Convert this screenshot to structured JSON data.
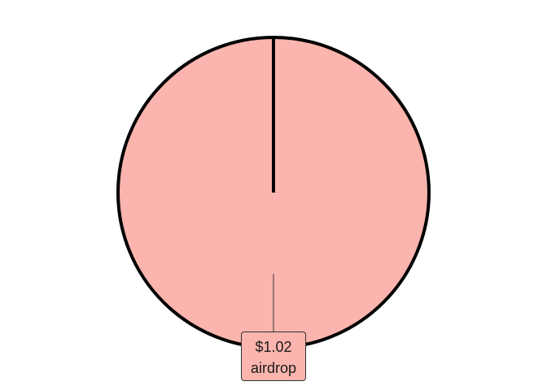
{
  "chart_data": {
    "type": "pie",
    "slices": [
      {
        "label": "airdrop",
        "value": 1.02,
        "value_label": "$1.02",
        "color": "#fbb4ae"
      }
    ],
    "title": "",
    "legend": "none",
    "grid": false
  }
}
